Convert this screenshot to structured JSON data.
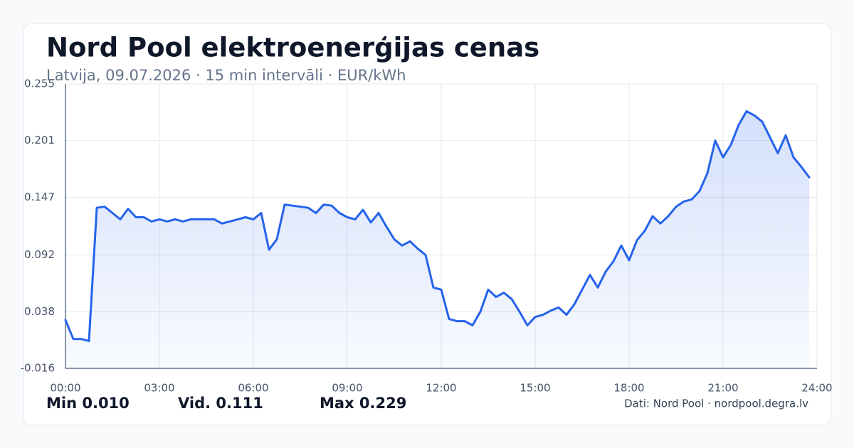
{
  "chart_data": {
    "type": "line",
    "title": "Nord Pool elektroenerģijas cenas",
    "subtitle": "Latvija, 09.07.2026 · 15 min intervāli · EUR/kWh",
    "x": [
      0,
      0.25,
      0.5,
      0.75,
      1,
      1.25,
      1.5,
      1.75,
      2,
      2.25,
      2.5,
      2.75,
      3,
      3.25,
      3.5,
      3.75,
      4,
      4.25,
      4.5,
      4.75,
      5,
      5.25,
      5.5,
      5.75,
      6,
      6.25,
      6.5,
      6.75,
      7,
      7.25,
      7.5,
      7.75,
      8,
      8.25,
      8.5,
      8.75,
      9,
      9.25,
      9.5,
      9.75,
      10,
      10.25,
      10.5,
      10.75,
      11,
      11.25,
      11.5,
      11.75,
      12,
      12.25,
      12.5,
      12.75,
      13,
      13.25,
      13.5,
      13.75,
      14,
      14.25,
      14.5,
      14.75,
      15,
      15.25,
      15.5,
      15.75,
      16,
      16.25,
      16.5,
      16.75,
      17,
      17.25,
      17.5,
      17.75,
      18,
      18.25,
      18.5,
      18.75,
      19,
      19.25,
      19.5,
      19.75,
      20,
      20.25,
      20.5,
      20.75,
      21,
      21.25,
      21.5,
      21.75,
      22,
      22.25,
      22.5,
      22.75,
      23,
      23.25,
      23.5,
      23.75
    ],
    "values": [
      0.03,
      0.012,
      0.012,
      0.01,
      0.137,
      0.138,
      0.132,
      0.126,
      0.136,
      0.128,
      0.128,
      0.124,
      0.126,
      0.124,
      0.126,
      0.124,
      0.126,
      0.126,
      0.126,
      0.126,
      0.122,
      0.124,
      0.126,
      0.128,
      0.126,
      0.132,
      0.097,
      0.107,
      0.14,
      0.139,
      0.138,
      0.137,
      0.132,
      0.14,
      0.139,
      0.132,
      0.128,
      0.126,
      0.135,
      0.123,
      0.132,
      0.119,
      0.107,
      0.101,
      0.105,
      0.098,
      0.092,
      0.061,
      0.059,
      0.031,
      0.029,
      0.029,
      0.025,
      0.038,
      0.059,
      0.052,
      0.056,
      0.05,
      0.038,
      0.025,
      0.033,
      0.035,
      0.039,
      0.042,
      0.035,
      0.045,
      0.059,
      0.073,
      0.061,
      0.076,
      0.086,
      0.101,
      0.087,
      0.106,
      0.115,
      0.129,
      0.122,
      0.129,
      0.138,
      0.143,
      0.145,
      0.153,
      0.17,
      0.201,
      0.185,
      0.197,
      0.216,
      0.229,
      0.225,
      0.219,
      0.204,
      0.189,
      0.206,
      0.185,
      0.176,
      0.166
    ],
    "color": "#2563eb",
    "xlim": [
      0,
      24
    ],
    "xticks": [
      {
        "value": 0,
        "label": "00:00"
      },
      {
        "value": 3,
        "label": "03:00"
      },
      {
        "value": 6,
        "label": "06:00"
      },
      {
        "value": 9,
        "label": "09:00"
      },
      {
        "value": 12,
        "label": "12:00"
      },
      {
        "value": 15,
        "label": "15:00"
      },
      {
        "value": 18,
        "label": "18:00"
      },
      {
        "value": 21,
        "label": "21:00"
      },
      {
        "value": 24,
        "label": "24:00"
      }
    ],
    "ylim": [
      -0.016,
      0.255
    ],
    "yticks": [
      -0.016,
      0.038,
      0.092,
      0.147,
      0.201,
      0.255
    ],
    "grid": true,
    "stats": [
      "Min 0.010",
      "Vid. 0.111",
      "Max 0.229"
    ],
    "source": "Dati: Nord Pool · nordpool.degra.lv"
  }
}
